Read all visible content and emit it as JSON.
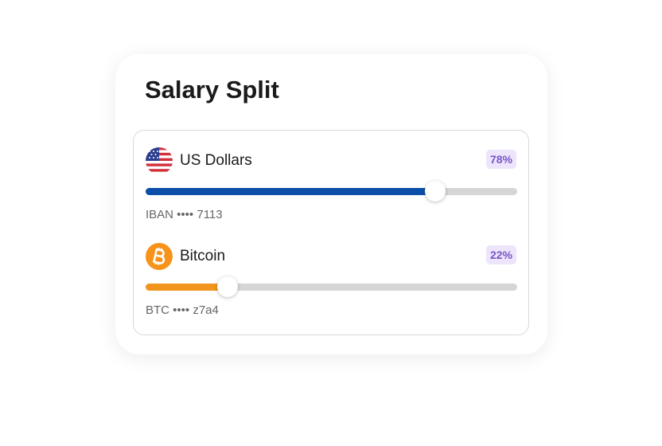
{
  "header": {
    "title": "Salary Split"
  },
  "items": [
    {
      "name": "US Dollars",
      "icon": "us-flag",
      "value": 78,
      "value_label": "78%",
      "color": "#0b4fa8",
      "account": "IBAN •••• 7113"
    },
    {
      "name": "Bitcoin",
      "icon": "bitcoin",
      "value": 22,
      "value_label": "22%",
      "color": "#f2951f",
      "account": "BTC •••• z7a4"
    }
  ]
}
